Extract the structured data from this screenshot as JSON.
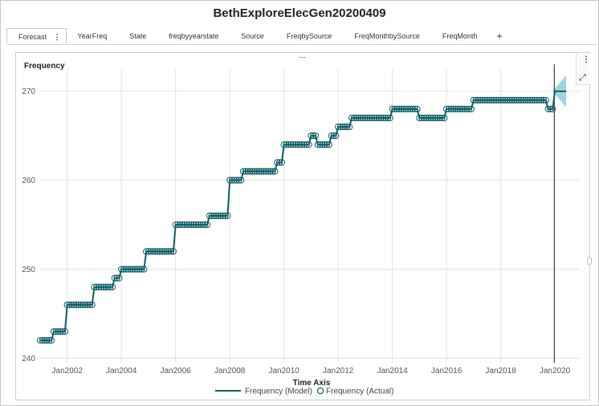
{
  "title": "BethExploreElecGen20200409",
  "tabs": [
    {
      "label": "Forecast",
      "active": true
    },
    {
      "label": "YearFreq"
    },
    {
      "label": "State"
    },
    {
      "label": "freqbyyearstate"
    },
    {
      "label": "Source"
    },
    {
      "label": "FreqbySource"
    },
    {
      "label": "FreqMonthbySource"
    },
    {
      "label": "FreqMonth"
    }
  ],
  "tab_menu_icon": "⋮",
  "add_tab_icon": "+",
  "panel": {
    "grip_icon": "····",
    "menu_icon": "⋮",
    "expand_icon": "⤢"
  },
  "colors": {
    "series": "#0f5e66",
    "forecast_band": "#8ccfd6",
    "grid": "#e3e3e3"
  },
  "chart_data": {
    "type": "line",
    "ylabel": "Frequency",
    "xlabel": "Time Axis",
    "xlim": [
      "2001-01",
      "2020-12"
    ],
    "ylim": [
      239.5,
      272.5
    ],
    "y_ticks": [
      240,
      250,
      260,
      270
    ],
    "x_ticks": [
      "Jan2002",
      "Jan2004",
      "Jan2006",
      "Jan2008",
      "Jan2010",
      "Jan2012",
      "Jan2014",
      "Jan2016",
      "Jan2018",
      "Jan2020"
    ],
    "grid": true,
    "legend_position": "bottom",
    "series": [
      {
        "name": "Frequency (Model)",
        "style": "line",
        "steps": [
          [
            "2001-01",
            242
          ],
          [
            "2001-07",
            243
          ],
          [
            "2002-01",
            246
          ],
          [
            "2003-01",
            248
          ],
          [
            "2003-10",
            249
          ],
          [
            "2004-01",
            250
          ],
          [
            "2004-12",
            252
          ],
          [
            "2006-01",
            255
          ],
          [
            "2007-04",
            256
          ],
          [
            "2008-01",
            260
          ],
          [
            "2008-07",
            261
          ],
          [
            "2009-10",
            262
          ],
          [
            "2010-01",
            264
          ],
          [
            "2011-01",
            265
          ],
          [
            "2011-04",
            264
          ],
          [
            "2011-10",
            265
          ],
          [
            "2012-01",
            266
          ],
          [
            "2012-07",
            267
          ],
          [
            "2014-01",
            268
          ],
          [
            "2015-01",
            267
          ],
          [
            "2016-01",
            268
          ],
          [
            "2017-01",
            269
          ],
          [
            "2019-10",
            268
          ],
          [
            "2020-01",
            270
          ]
        ]
      },
      {
        "name": "Frequency (Actual)",
        "style": "markers",
        "end": "2019-12"
      }
    ],
    "forecast_start": "2019-12",
    "forecast_end": "2020-06",
    "forecast_value": 270
  }
}
